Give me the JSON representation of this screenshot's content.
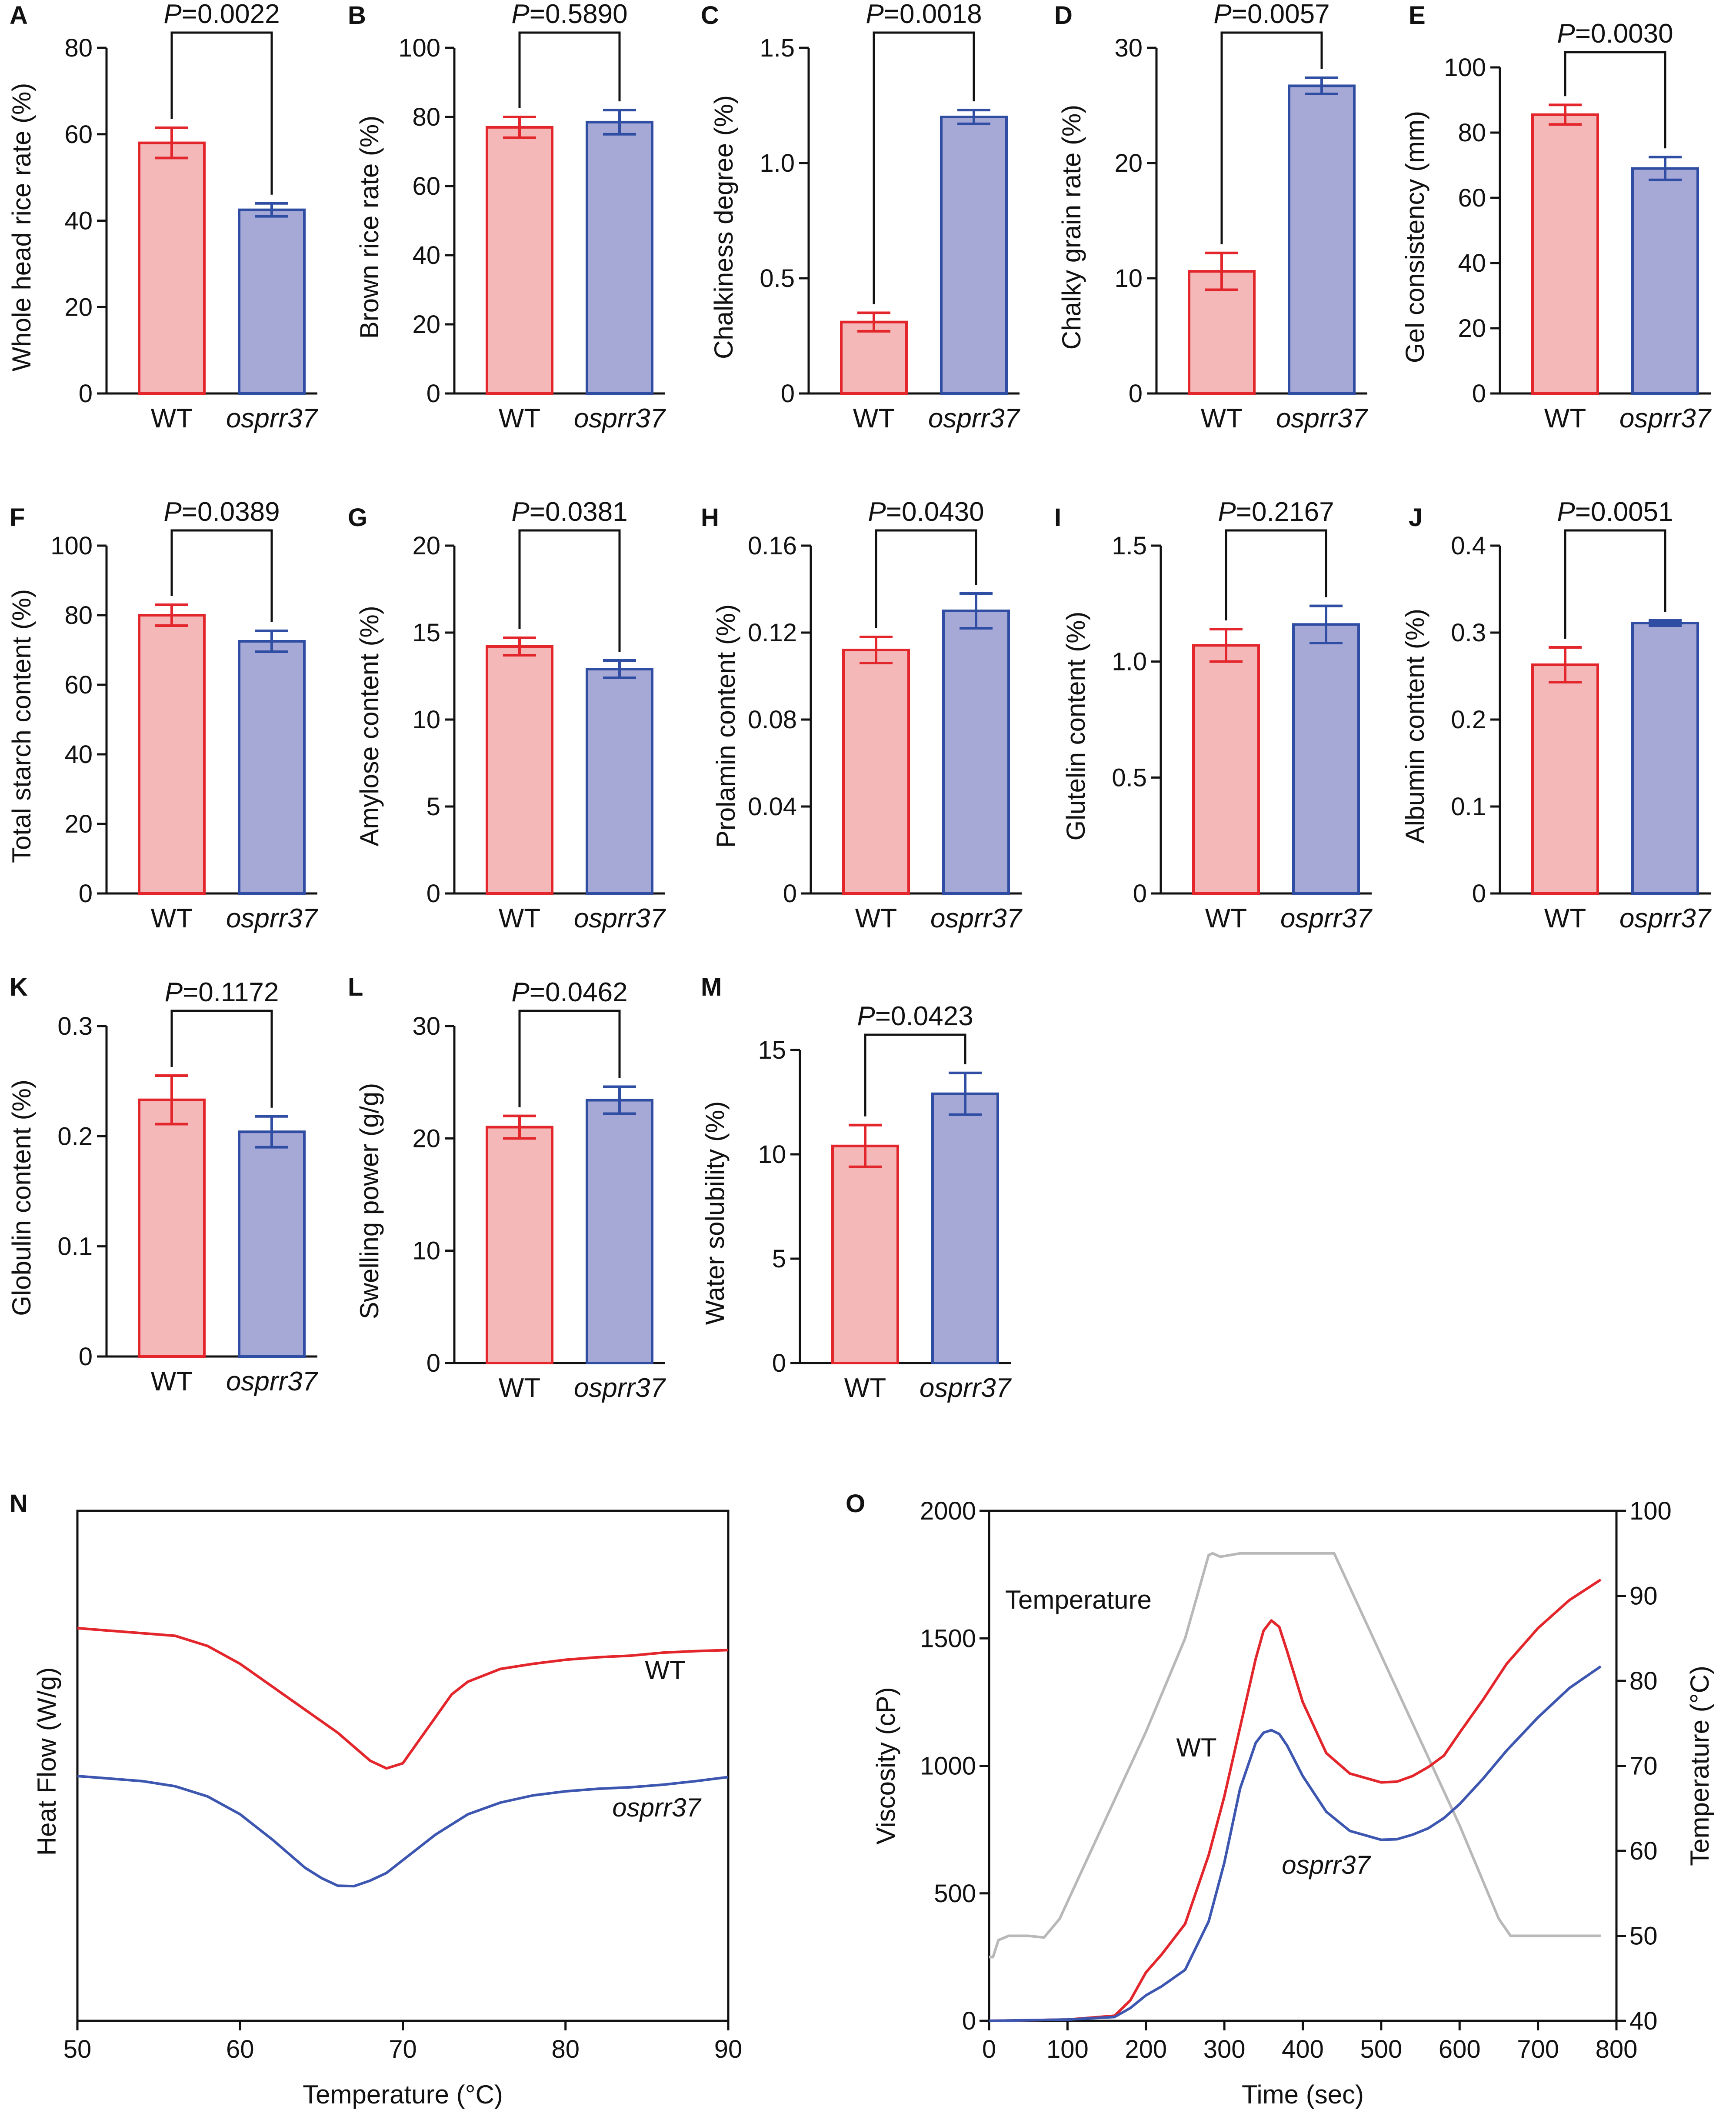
{
  "colors": {
    "wt_fill": "#f4b8b9",
    "wt_stroke": "#e3262b",
    "mut_fill": "#a6a9d6",
    "mut_stroke": "#2f4da3",
    "temp": "#b8b8b8",
    "dsc_wt": "#e3262b",
    "dsc_mut": "#3d56b0"
  },
  "groups": [
    "WT",
    "osprr37"
  ],
  "chart_data": [
    {
      "id": "A",
      "type": "bar",
      "ylabel": "Whole head rice rate (%)",
      "ylim": [
        0,
        80
      ],
      "yticks": [
        "0",
        "20",
        "40",
        "60",
        "80"
      ],
      "values": [
        58,
        42.5
      ],
      "errors": [
        3.5,
        1.5
      ],
      "p": "0.0022",
      "categories": [
        "WT",
        "osprr37"
      ]
    },
    {
      "id": "B",
      "type": "bar",
      "ylabel": "Brown rice rate (%)",
      "ylim": [
        0,
        100
      ],
      "yticks": [
        "0",
        "20",
        "40",
        "60",
        "80",
        "100"
      ],
      "values": [
        77,
        78.5
      ],
      "errors": [
        3,
        3.5
      ],
      "p": "0.5890",
      "categories": [
        "WT",
        "osprr37"
      ]
    },
    {
      "id": "C",
      "type": "bar",
      "ylabel": "Chalkiness degree (%)",
      "ylim": [
        0,
        1.5
      ],
      "yticks": [
        "0",
        "0.5",
        "1.0",
        "1.5"
      ],
      "values": [
        0.31,
        1.2
      ],
      "errors": [
        0.04,
        0.03
      ],
      "p": "0.0018",
      "categories": [
        "WT",
        "osprr37"
      ]
    },
    {
      "id": "D",
      "type": "bar",
      "ylabel": "Chalky grain rate (%)",
      "ylim": [
        0,
        30
      ],
      "yticks": [
        "0",
        "10",
        "20",
        "30"
      ],
      "values": [
        10.6,
        26.7
      ],
      "errors": [
        1.6,
        0.7
      ],
      "p": "0.0057",
      "categories": [
        "WT",
        "osprr37"
      ]
    },
    {
      "id": "E",
      "type": "bar",
      "ylabel": "Gel consistency (mm)",
      "ylim": [
        0,
        100
      ],
      "yticks": [
        "0",
        "20",
        "40",
        "60",
        "80",
        "100"
      ],
      "values": [
        85.5,
        69
      ],
      "errors": [
        3,
        3.5
      ],
      "p": "0.0030",
      "categories": [
        "WT",
        "osprr37"
      ]
    },
    {
      "id": "F",
      "type": "bar",
      "ylabel": "Total starch content (%)",
      "ylim": [
        0,
        100
      ],
      "yticks": [
        "0",
        "20",
        "40",
        "60",
        "80",
        "100"
      ],
      "values": [
        80,
        72.5
      ],
      "errors": [
        3,
        3
      ],
      "p": "0.0389",
      "categories": [
        "WT",
        "osprr37"
      ]
    },
    {
      "id": "G",
      "type": "bar",
      "ylabel": "Amylose content (%)",
      "ylim": [
        0,
        20
      ],
      "yticks": [
        "0",
        "5",
        "10",
        "15",
        "20"
      ],
      "values": [
        14.2,
        12.9
      ],
      "errors": [
        0.5,
        0.5
      ],
      "p": "0.0381",
      "categories": [
        "WT",
        "osprr37"
      ]
    },
    {
      "id": "H",
      "type": "bar",
      "ylabel": "Prolamin content (%)",
      "ylim": [
        0,
        0.16
      ],
      "yticks": [
        "0",
        "0.04",
        "0.08",
        "0.12",
        "0.16"
      ],
      "values": [
        0.112,
        0.13
      ],
      "errors": [
        0.006,
        0.008
      ],
      "p": "0.0430",
      "categories": [
        "WT",
        "osprr37"
      ]
    },
    {
      "id": "I",
      "type": "bar",
      "ylabel": "Glutelin content (%)",
      "ylim": [
        0,
        1.5
      ],
      "yticks": [
        "0",
        "0.5",
        "1.0",
        "1.5"
      ],
      "values": [
        1.07,
        1.16
      ],
      "errors": [
        0.07,
        0.08
      ],
      "p": "0.2167",
      "categories": [
        "WT",
        "osprr37"
      ]
    },
    {
      "id": "J",
      "type": "bar",
      "ylabel": "Albumin content (%)",
      "ylim": [
        0,
        0.4
      ],
      "yticks": [
        "0",
        "0.1",
        "0.2",
        "0.3",
        "0.4"
      ],
      "values": [
        0.263,
        0.311
      ],
      "errors": [
        0.02,
        0.003
      ],
      "p": "0.0051",
      "categories": [
        "WT",
        "osprr37"
      ]
    },
    {
      "id": "K",
      "type": "bar",
      "ylabel": "Globulin content (%)",
      "ylim": [
        0,
        0.3
      ],
      "yticks": [
        "0",
        "0.1",
        "0.2",
        "0.3"
      ],
      "values": [
        0.233,
        0.204
      ],
      "errors": [
        0.022,
        0.014
      ],
      "p": "0.1172",
      "categories": [
        "WT",
        "osprr37"
      ]
    },
    {
      "id": "L",
      "type": "bar",
      "ylabel": "Swelling power (g/g)",
      "ylim": [
        0,
        30
      ],
      "yticks": [
        "0",
        "10",
        "20",
        "30"
      ],
      "values": [
        21,
        23.4
      ],
      "errors": [
        1,
        1.2
      ],
      "p": "0.0462",
      "categories": [
        "WT",
        "osprr37"
      ]
    },
    {
      "id": "M",
      "type": "bar",
      "ylabel": "Water solubility (%)",
      "ylim": [
        0,
        15
      ],
      "yticks": [
        "0",
        "5",
        "10",
        "15"
      ],
      "values": [
        10.4,
        12.9
      ],
      "errors": [
        1,
        1
      ],
      "p": "0.0423",
      "categories": [
        "WT",
        "osprr37"
      ]
    },
    {
      "id": "N",
      "type": "line",
      "ylabel": "Heat Flow (W/g)",
      "xlabel": "Temperature (°C)",
      "xlim": [
        50,
        90
      ],
      "xticks": [
        "50",
        "60",
        "70",
        "80",
        "90"
      ],
      "ylim": [
        0,
        100
      ],
      "series": [
        {
          "name": "WT",
          "x": [
            50,
            52,
            54,
            56,
            58,
            60,
            62,
            64,
            66,
            68,
            69,
            70,
            71,
            72,
            73,
            74,
            76,
            78,
            80,
            82,
            84,
            86,
            88,
            90
          ],
          "y": [
            77,
            76.5,
            76,
            75.5,
            73.5,
            70,
            65.5,
            61,
            56.5,
            51,
            49.5,
            50.5,
            55,
            59.5,
            64,
            66.5,
            69,
            70,
            70.8,
            71.3,
            71.6,
            72.2,
            72.5,
            72.7
          ]
        },
        {
          "name": "osprr37",
          "x": [
            50,
            52,
            54,
            56,
            58,
            60,
            62,
            64,
            65,
            66,
            67,
            68,
            69,
            70,
            72,
            74,
            76,
            78,
            80,
            82,
            84,
            86,
            88,
            90
          ],
          "y": [
            48,
            47.5,
            47,
            46,
            44,
            40.5,
            35.5,
            30,
            28,
            26.5,
            26.4,
            27.5,
            29,
            31.5,
            36.5,
            40.5,
            42.8,
            44.2,
            45,
            45.5,
            45.8,
            46.3,
            47,
            47.8
          ]
        }
      ],
      "labels": [
        "WT",
        "osprr37"
      ]
    },
    {
      "id": "O",
      "type": "line",
      "ylabel": "Viscosity (cP)",
      "y2label": "Temperature (°C)",
      "xlabel": "Time (sec)",
      "xlim": [
        0,
        800
      ],
      "xticks": [
        "0",
        "100",
        "200",
        "300",
        "400",
        "500",
        "600",
        "700",
        "800"
      ],
      "ylim": [
        0,
        2000
      ],
      "yticks": [
        "0",
        "500",
        "1000",
        "1500",
        "2000"
      ],
      "y2lim": [
        40,
        100
      ],
      "y2ticks": [
        "40",
        "50",
        "60",
        "70",
        "80",
        "90",
        "100"
      ],
      "series": [
        {
          "name": "Temperature",
          "axis": "y2",
          "x": [
            0,
            5,
            12,
            25,
            50,
            70,
            90,
            150,
            200,
            250,
            280,
            285,
            295,
            320,
            350,
            400,
            440,
            500,
            560,
            600,
            650,
            665,
            700,
            750,
            780
          ],
          "y": [
            47.5,
            47.5,
            49.5,
            50,
            50,
            49.8,
            52,
            64,
            74,
            85,
            94.8,
            95,
            94.6,
            95,
            95,
            95,
            95,
            83,
            71,
            63,
            52,
            50,
            50,
            50,
            50
          ]
        },
        {
          "name": "WT",
          "axis": "y",
          "x": [
            0,
            100,
            160,
            180,
            200,
            220,
            250,
            280,
            300,
            320,
            340,
            350,
            360,
            370,
            380,
            400,
            430,
            460,
            500,
            520,
            540,
            560,
            580,
            600,
            630,
            660,
            700,
            740,
            780
          ],
          "y": [
            0,
            5,
            20,
            80,
            190,
            260,
            380,
            650,
            880,
            1150,
            1420,
            1530,
            1570,
            1545,
            1450,
            1250,
            1050,
            970,
            935,
            938,
            960,
            995,
            1040,
            1130,
            1260,
            1400,
            1540,
            1650,
            1730
          ]
        },
        {
          "name": "osprr37",
          "axis": "y",
          "x": [
            0,
            100,
            160,
            180,
            200,
            220,
            250,
            280,
            300,
            320,
            340,
            350,
            360,
            370,
            380,
            400,
            430,
            460,
            500,
            520,
            540,
            560,
            580,
            600,
            630,
            660,
            700,
            740,
            780
          ],
          "y": [
            0,
            5,
            15,
            50,
            100,
            135,
            200,
            390,
            620,
            910,
            1090,
            1130,
            1140,
            1125,
            1080,
            960,
            820,
            745,
            710,
            712,
            730,
            755,
            795,
            850,
            950,
            1060,
            1190,
            1305,
            1390
          ]
        }
      ],
      "labels": [
        "Temperature",
        "WT",
        "osprr37"
      ]
    }
  ]
}
